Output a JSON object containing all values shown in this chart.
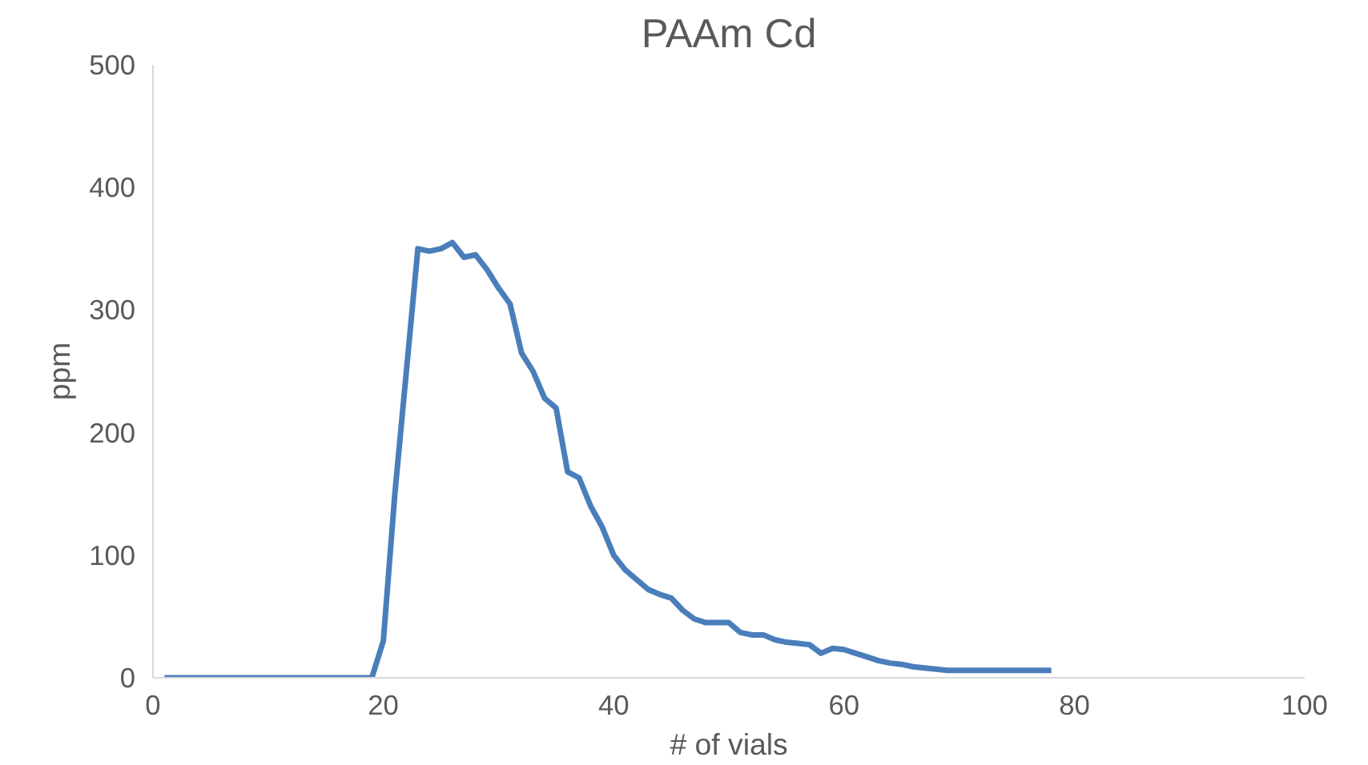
{
  "chart_data": {
    "type": "line",
    "title": "PAAm Cd",
    "xlabel": "# of vials",
    "ylabel": "ppm",
    "x": [
      1,
      2,
      3,
      4,
      5,
      6,
      7,
      8,
      9,
      10,
      11,
      12,
      13,
      14,
      15,
      16,
      17,
      18,
      19,
      20,
      21,
      22,
      23,
      24,
      25,
      26,
      27,
      28,
      29,
      30,
      31,
      32,
      33,
      34,
      35,
      36,
      37,
      38,
      39,
      40,
      41,
      42,
      43,
      44,
      45,
      46,
      47,
      48,
      49,
      50,
      51,
      52,
      53,
      54,
      55,
      56,
      57,
      58,
      59,
      60,
      61,
      62,
      63,
      64,
      65,
      66,
      67,
      68,
      69,
      70,
      71,
      72,
      73,
      74,
      75,
      76,
      77,
      78
    ],
    "series": [
      {
        "color": "#4a7ebb",
        "values": [
          0,
          0,
          0,
          0,
          0,
          0,
          0,
          0,
          0,
          0,
          0,
          0,
          0,
          0,
          0,
          0,
          0,
          0,
          0,
          30,
          150,
          250,
          350,
          348,
          350,
          355,
          343,
          345,
          333,
          318,
          305,
          265,
          250,
          228,
          220,
          168,
          163,
          140,
          123,
          100,
          88,
          80,
          72,
          68,
          65,
          55,
          48,
          45,
          45,
          45,
          37,
          35,
          35,
          31,
          29,
          28,
          27,
          20,
          24,
          23,
          20,
          17,
          14,
          12,
          11,
          9,
          8,
          7,
          6,
          6,
          6,
          6,
          6,
          6,
          6,
          6,
          6,
          6
        ]
      }
    ],
    "xlim": [
      0,
      100
    ],
    "xticks": [
      0,
      20,
      40,
      60,
      80,
      100
    ],
    "ylim": [
      0,
      500
    ],
    "yticks": [
      0,
      100,
      200,
      300,
      400,
      500
    ],
    "grid": false,
    "marker": "none",
    "line_style": "solid"
  }
}
